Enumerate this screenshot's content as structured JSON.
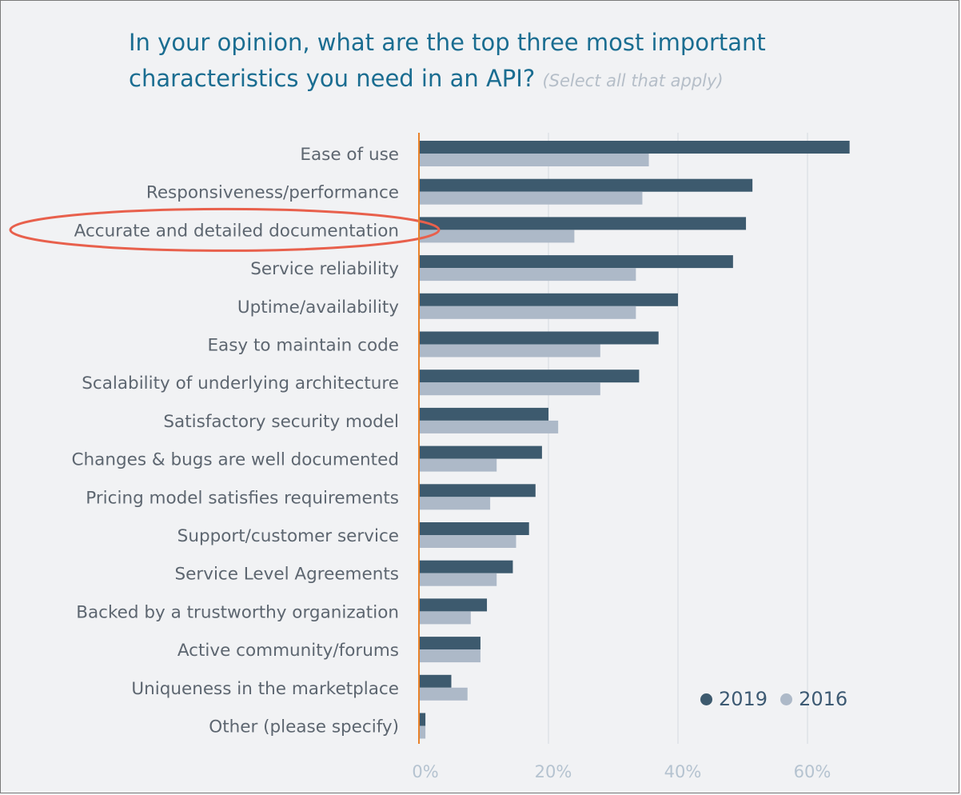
{
  "title": {
    "main": "In your opinion, what are the top three most important characteristics you need in an API?",
    "hint": "(Select all that apply)"
  },
  "colors": {
    "series_2019": "#3d5a6e",
    "series_2016": "#adb9c8",
    "axis_line": "#e8822a",
    "highlight": "#e8604c",
    "tick_text": "#b5c3d0",
    "label_text": "#5d6670",
    "title": "#1a6d91"
  },
  "chart_data": {
    "type": "bar",
    "orientation": "horizontal",
    "categories": [
      "Ease of use",
      "Responsiveness/performance",
      "Accurate and detailed documentation",
      "Service reliability",
      "Uptime/availability",
      "Easy to maintain code",
      "Scalability of underlying architecture",
      "Satisfactory security model",
      "Changes & bugs are well documented",
      "Pricing model satisfies requirements",
      "Support/customer service",
      "Service Level Agreements",
      "Backed by a trustworthy organization",
      "Active community/forums",
      "Uniqueness in the marketplace",
      "Other (please specify)"
    ],
    "series": [
      {
        "name": "2019",
        "values": [
          66.5,
          51.5,
          50.5,
          48.5,
          40,
          37,
          34,
          20,
          19,
          18,
          17,
          14.5,
          10.5,
          9.5,
          5,
          1
        ]
      },
      {
        "name": "2016",
        "values": [
          35.5,
          34.5,
          24,
          33.5,
          33.5,
          28,
          28,
          21.5,
          12,
          11,
          15,
          12,
          8,
          9.5,
          7.5,
          1
        ]
      }
    ],
    "xlim": [
      0,
      70
    ],
    "xticks": [
      0,
      20,
      40,
      60
    ],
    "xtick_labels": [
      "0%",
      "20%",
      "40%",
      "60%"
    ],
    "grid": true,
    "legend_position": "bottom-right",
    "highlighted_category": "Accurate and detailed documentation"
  }
}
